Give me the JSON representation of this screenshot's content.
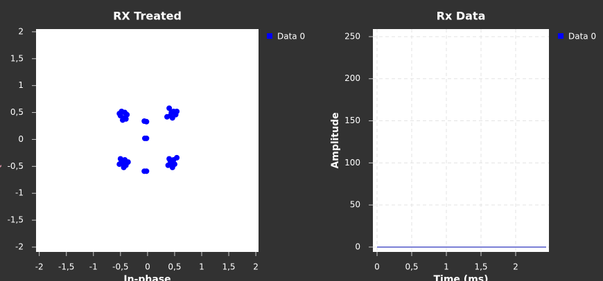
{
  "chart_data": [
    {
      "type": "scatter",
      "title": "RX Treated",
      "x_label": "In-phase",
      "y_label": "Quadrature",
      "x": [
        -0.48,
        -0.42,
        -0.5,
        -0.44,
        -0.38,
        -0.46,
        -0.52,
        -0.4,
        0.4,
        0.48,
        0.52,
        0.42,
        0.36,
        0.46,
        0.54,
        0.44,
        -0.5,
        -0.42,
        -0.46,
        -0.4,
        -0.52,
        -0.44,
        -0.36,
        -0.48,
        0.4,
        0.48,
        0.54,
        0.44,
        0.38,
        0.5,
        0.46,
        0.42,
        -0.06,
        -0.02,
        -0.05,
        -0.02,
        -0.06,
        -0.02
      ],
      "series": [
        {
          "name": "Data 0",
          "color": "#0000ff",
          "values": [
            0.52,
            0.5,
            0.44,
            0.4,
            0.46,
            0.36,
            0.48,
            0.38,
            0.58,
            0.52,
            0.46,
            0.44,
            0.42,
            0.4,
            0.52,
            0.5,
            -0.36,
            -0.38,
            -0.44,
            -0.48,
            -0.46,
            -0.52,
            -0.42,
            -0.4,
            -0.36,
            -0.38,
            -0.34,
            -0.44,
            -0.48,
            -0.46,
            -0.52,
            -0.4,
            0.34,
            0.33,
            0.02,
            0.02,
            -0.59,
            -0.59
          ]
        }
      ],
      "xlim": [
        -2.06,
        2.05
      ],
      "ylim": [
        -2.09,
        2.05
      ],
      "xticks": [
        -2,
        {
          "value": -1.5,
          "label": "-1,5"
        },
        -1,
        {
          "value": -0.5,
          "label": "-0,5"
        },
        0,
        {
          "value": 0.5,
          "label": "0,5"
        },
        1,
        {
          "value": 1.5,
          "label": "1,5"
        },
        2
      ],
      "yticks": [
        -2,
        {
          "value": -1.5,
          "label": "-1,5"
        },
        -1,
        {
          "value": -0.5,
          "label": "-0,5"
        },
        0,
        {
          "value": 0.5,
          "label": "0,5"
        },
        1,
        {
          "value": 1.5,
          "label": "1,5"
        },
        2
      ],
      "grid": false
    },
    {
      "type": "line",
      "title": "Rx Data",
      "x_label": "Time (ms)",
      "y_label": "Amplitude",
      "x": [
        0,
        2.44
      ],
      "series": [
        {
          "name": "Data 0",
          "color": "#7b7fd6",
          "legend_color": "#0000ff",
          "values": [
            0,
            0
          ]
        }
      ],
      "xlim": [
        -0.06,
        2.48
      ],
      "ylim": [
        -5.8,
        259
      ],
      "xticks": [
        0,
        {
          "value": 0.5,
          "label": "0,5"
        },
        1,
        {
          "value": 1.5,
          "label": "1,5"
        },
        2
      ],
      "yticks": [
        0,
        50,
        100,
        150,
        200,
        250
      ],
      "grid": true
    }
  ]
}
